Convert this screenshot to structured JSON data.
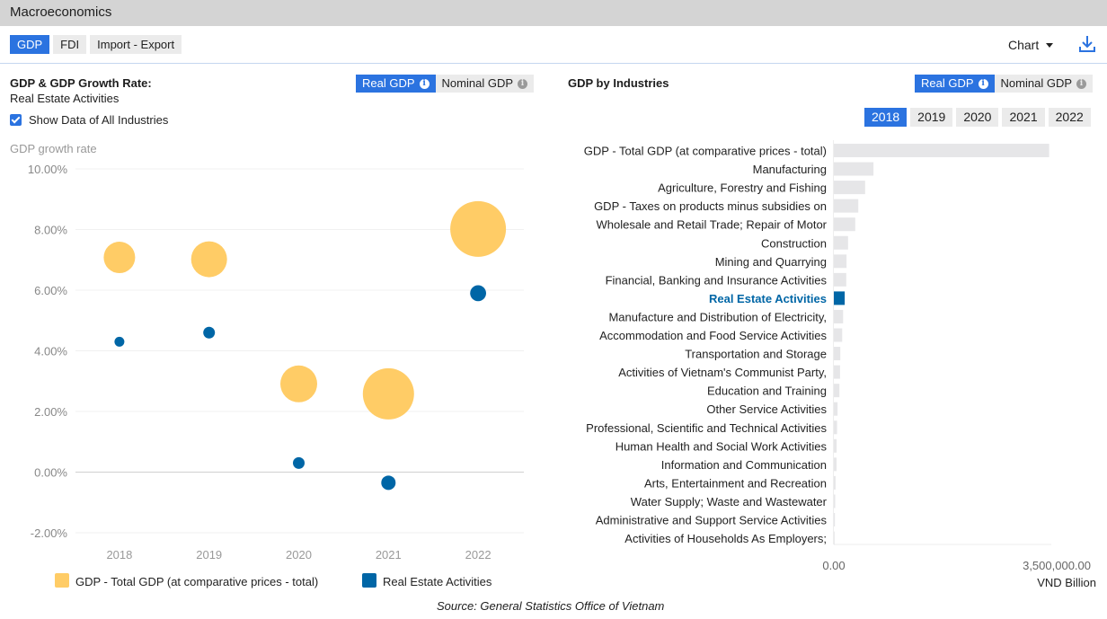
{
  "app": {
    "title": "Macroeconomics",
    "tabs": [
      {
        "label": "GDP",
        "active": true
      },
      {
        "label": "FDI",
        "active": false
      },
      {
        "label": "Import - Export",
        "active": false
      }
    ],
    "view_select": "Chart",
    "download_icon": "download-icon"
  },
  "left_panel": {
    "title": "GDP & GDP Growth Rate:",
    "subtitle": "Real Estate Activities",
    "toggle": [
      {
        "label": "Real GDP",
        "active": true
      },
      {
        "label": "Nominal GDP",
        "active": false
      }
    ],
    "checkbox": {
      "label": "Show Data of All Industries",
      "checked": true
    }
  },
  "right_panel": {
    "title": "GDP by Industries",
    "toggle": [
      {
        "label": "Real GDP",
        "active": true
      },
      {
        "label": "Nominal GDP",
        "active": false
      }
    ],
    "years": [
      {
        "label": "2018",
        "active": true
      },
      {
        "label": "2019",
        "active": false
      },
      {
        "label": "2020",
        "active": false
      },
      {
        "label": "2021",
        "active": false
      },
      {
        "label": "2022",
        "active": false
      }
    ]
  },
  "source": "Source: General Statistics Office of Vietnam",
  "chart_data": [
    {
      "type": "scatter",
      "subtype": "bubble",
      "title": "GDP & GDP Growth Rate: Real Estate Activities",
      "ylabel": "GDP growth rate",
      "xlabel": "",
      "categories": [
        "2018",
        "2019",
        "2020",
        "2021",
        "2022"
      ],
      "ylim": [
        -2,
        10
      ],
      "yticks": [
        -2,
        0,
        2,
        4,
        6,
        8,
        10
      ],
      "ytick_labels": [
        "-2.00%",
        "0.00%",
        "2.00%",
        "4.00%",
        "6.00%",
        "8.00%",
        "10.00%"
      ],
      "grid": true,
      "legend_position": "bottom",
      "series": [
        {
          "name": "GDP - Total GDP (at comparative prices - total)",
          "color": "#ffcc66",
          "values": [
            7.08,
            7.02,
            2.91,
            2.58,
            8.02
          ],
          "size_relative": [
            1.0,
            1.3,
            1.37,
            2.65,
            3.14
          ]
        },
        {
          "name": "Real Estate Activities",
          "color": "#0066a6",
          "values": [
            4.3,
            4.6,
            0.3,
            -0.35,
            5.9
          ],
          "size_relative": [
            0.1,
            0.14,
            0.14,
            0.21,
            0.26
          ]
        }
      ]
    },
    {
      "type": "bar",
      "orientation": "horizontal",
      "title": "GDP by Industries",
      "year": "2018",
      "xlabel": "VND Billion",
      "xlim": [
        0,
        3500000
      ],
      "xtick_labels": [
        "0.00",
        "3,500,000.00"
      ],
      "highlight": "Real Estate Activities",
      "highlight_color": "#0066a6",
      "bar_color": "#e6e6e8",
      "categories": [
        "GDP - Total GDP (at comparative prices - total)",
        "Manufacturing",
        "Agriculture, Forestry and Fishing",
        "GDP - Taxes on products minus subsidies on",
        "Wholesale and Retail Trade; Repair of Motor",
        "Construction",
        "Mining and Quarrying",
        "Financial, Banking and Insurance Activities",
        "Real Estate Activities",
        "Manufacture and Distribution of Electricity,",
        "Accommodation and Food Service Activities",
        "Transportation and Storage",
        "Activities of Vietnam's Communist Party,",
        "Education and Training",
        "Other Service Activities",
        "Professional, Scientific and Technical Activities",
        "Human Health and Social Work Activities",
        "Information and Communication",
        "Arts, Entertainment and Recreation",
        "Water Supply; Waste and Wastewater",
        "Administrative and Support Service Activities",
        "Activities of Households As Employers;"
      ],
      "values": [
        3480000,
        640000,
        505000,
        395000,
        345000,
        230000,
        205000,
        200000,
        175000,
        150000,
        135000,
        105000,
        100000,
        90000,
        60000,
        52000,
        45000,
        44000,
        28000,
        22000,
        18000,
        8000
      ]
    }
  ]
}
